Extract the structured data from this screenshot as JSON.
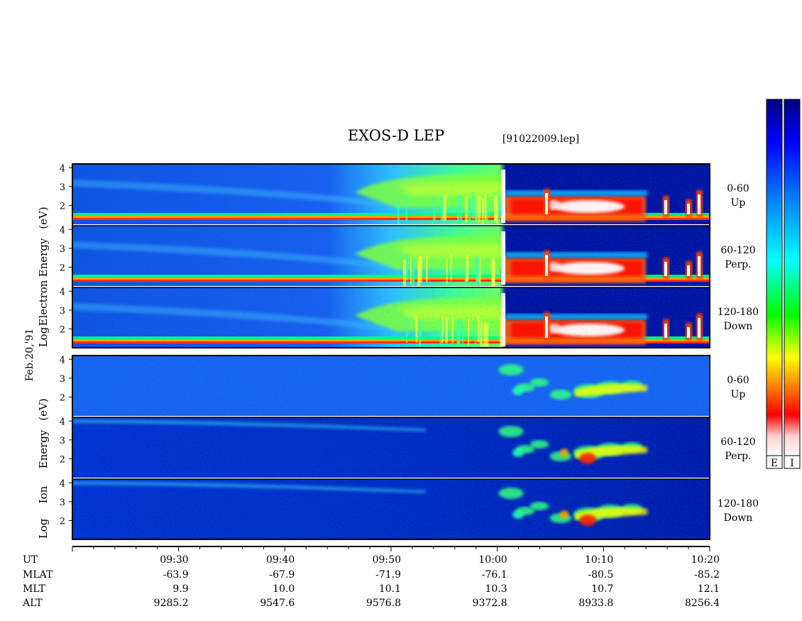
{
  "title": "EXOS-D LEP",
  "file_label": "[91022009.lep]",
  "date_label": "Feb.20,'91",
  "chart_data": [
    {
      "type": "heatmap",
      "species": "Electron",
      "ylabel_parts": [
        "Log",
        "Electron",
        "Energy",
        "(eV)"
      ],
      "y_scale": "log10 energy (eV)",
      "ylim": [
        1,
        4.2
      ],
      "y_ticks": [
        "4",
        "3",
        "2"
      ],
      "panels": [
        {
          "angle": "0-60",
          "direction": "Up"
        },
        {
          "angle": "60-120",
          "direction": "Perp."
        },
        {
          "angle": "120-180",
          "direction": "Down"
        }
      ]
    },
    {
      "type": "heatmap",
      "species": "Ion",
      "ylabel_parts": [
        "Log",
        "Ion",
        "Energy",
        "(eV)"
      ],
      "y_scale": "log10 energy (eV)",
      "ylim": [
        1,
        4.2
      ],
      "y_ticks": [
        "4",
        "3",
        "2"
      ],
      "panels": [
        {
          "angle": "0-60",
          "direction": "Up"
        },
        {
          "angle": "60-120",
          "direction": "Perp."
        },
        {
          "angle": "120-180",
          "direction": "Down"
        }
      ]
    }
  ],
  "axis": {
    "row_labels": [
      "UT",
      "MLAT",
      "MLT",
      "ALT"
    ],
    "columns": [
      {
        "ut": "09:30",
        "mlat": "-63.9",
        "mlt": "9.9",
        "alt": "9285.2"
      },
      {
        "ut": "09:40",
        "mlat": "-67.9",
        "mlt": "10.0",
        "alt": "9547.6"
      },
      {
        "ut": "09:50",
        "mlat": "-71.9",
        "mlt": "10.1",
        "alt": "9576.8"
      },
      {
        "ut": "10:00",
        "mlat": "-76.1",
        "mlt": "10.3",
        "alt": "9372.8"
      },
      {
        "ut": "10:10",
        "mlat": "-80.5",
        "mlt": "10.7",
        "alt": "8933.8"
      },
      {
        "ut": "10:20",
        "mlat": "-85.2",
        "mlt": "12.1",
        "alt": "8256.4"
      }
    ],
    "ut_range_minutes": [
      560,
      620
    ],
    "minor_tick_step_minutes": 2
  },
  "colorbar": {
    "labels": [
      "E",
      "I"
    ],
    "colors": [
      "#ffffff",
      "#ff0000",
      "#ff8000",
      "#ffff00",
      "#00ff00",
      "#00ffff",
      "#0080ff",
      "#0000ff",
      "#00008b"
    ]
  }
}
